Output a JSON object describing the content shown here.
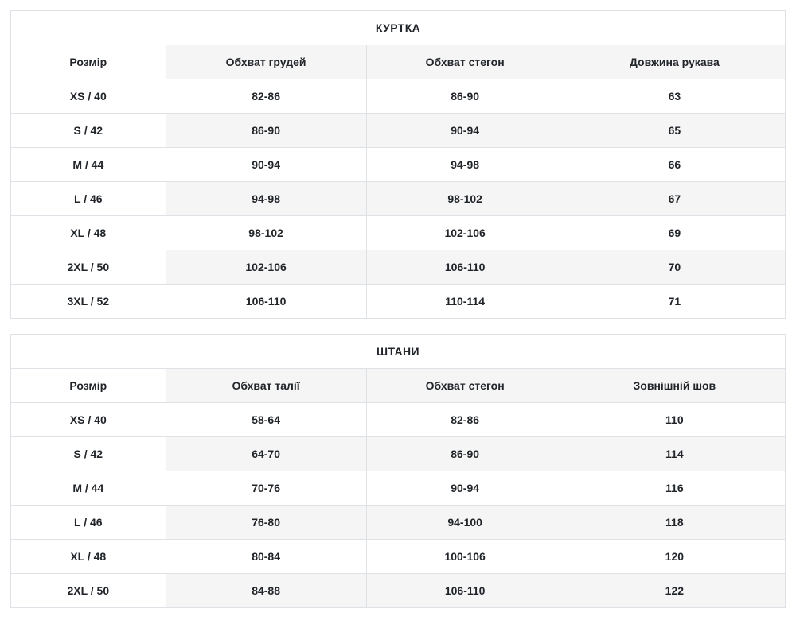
{
  "colors": {
    "title_text": "#1e3a8f",
    "border": "#dee2e6",
    "stripe_background": "#f5f5f6",
    "cell_text": "#212529",
    "page_background": "#ffffff"
  },
  "tables": [
    {
      "title": "КУРТКА",
      "columns": [
        "Розмір",
        "Обхват грудей",
        "Обхват стегон",
        "Довжина рукава"
      ],
      "rows": [
        [
          "XS / 40",
          "82-86",
          "86-90",
          "63"
        ],
        [
          "S / 42",
          "86-90",
          "90-94",
          "65"
        ],
        [
          "M / 44",
          "90-94",
          "94-98",
          "66"
        ],
        [
          "L / 46",
          "94-98",
          "98-102",
          "67"
        ],
        [
          "XL / 48",
          "98-102",
          "102-106",
          "69"
        ],
        [
          "2XL / 50",
          "102-106",
          "106-110",
          "70"
        ],
        [
          "3XL / 52",
          "106-110",
          "110-114",
          "71"
        ]
      ]
    },
    {
      "title": "ШТАНИ",
      "columns": [
        "Розмір",
        "Обхват талії",
        "Обхват стегон",
        "Зовнішній шов"
      ],
      "rows": [
        [
          "XS / 40",
          "58-64",
          "82-86",
          "110"
        ],
        [
          "S / 42",
          "64-70",
          "86-90",
          "114"
        ],
        [
          "M / 44",
          "70-76",
          "90-94",
          "116"
        ],
        [
          "L / 46",
          "76-80",
          "94-100",
          "118"
        ],
        [
          "XL / 48",
          "80-84",
          "100-106",
          "120"
        ],
        [
          "2XL / 50",
          "84-88",
          "106-110",
          "122"
        ]
      ]
    }
  ]
}
